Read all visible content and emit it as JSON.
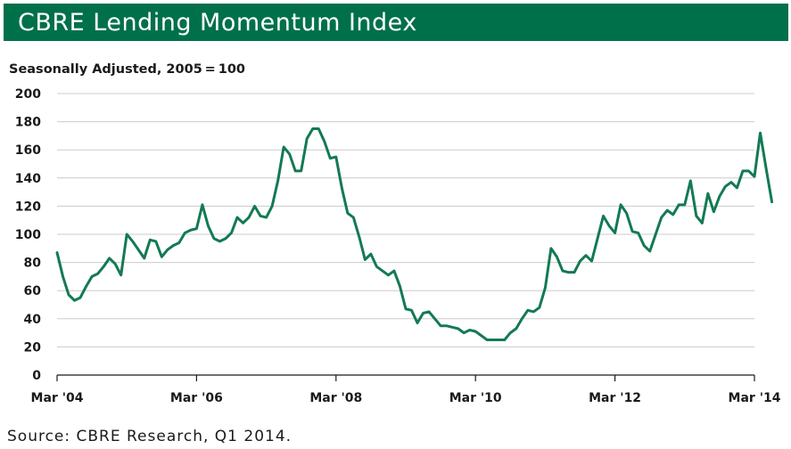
{
  "header": {
    "title": "CBRE Lending Momentum Index"
  },
  "source": "Source: CBRE Research, Q1 2014.",
  "colors": {
    "brand": "#00704a",
    "line": "#137a53",
    "grid": "#cccccc"
  },
  "chart_data": {
    "type": "line",
    "subtitle": "Seasonally Adjusted, 2005 = 100",
    "xlabel": "",
    "ylabel": "",
    "ylim": [
      0,
      200
    ],
    "yticks": [
      0,
      20,
      40,
      60,
      80,
      100,
      120,
      140,
      160,
      180,
      200
    ],
    "xlim": [
      0,
      120
    ],
    "xticks": [
      {
        "x": 0,
        "label": "Mar '04"
      },
      {
        "x": 24,
        "label": "Mar '06"
      },
      {
        "x": 48,
        "label": "Mar '08"
      },
      {
        "x": 72,
        "label": "Mar '10"
      },
      {
        "x": 96,
        "label": "Mar '12"
      },
      {
        "x": 120,
        "label": "Mar '14"
      }
    ],
    "grid": true,
    "legend": "none",
    "series": [
      {
        "values": [
          87,
          70,
          57,
          53,
          55,
          63,
          70,
          72,
          77,
          83,
          79,
          71,
          100,
          95,
          89,
          83,
          96,
          95,
          84,
          89,
          92,
          94,
          101,
          103,
          104,
          121,
          106,
          97,
          95,
          97,
          101,
          112,
          108,
          112,
          120,
          113,
          112,
          120,
          138,
          162,
          157,
          145,
          145,
          168,
          175,
          175,
          166,
          154,
          155,
          133,
          115,
          112,
          98,
          82,
          86,
          77,
          74,
          71,
          74,
          63,
          47,
          46,
          37,
          44,
          45,
          40,
          35,
          35,
          34,
          33,
          30,
          32,
          31,
          28,
          25,
          25,
          25,
          25,
          30,
          33,
          40,
          46,
          45,
          48,
          62,
          90,
          84,
          74,
          73,
          73,
          81,
          85,
          81,
          97,
          113,
          106,
          101,
          121,
          115,
          102,
          101,
          92,
          88,
          100,
          112,
          117,
          114,
          121,
          121,
          138,
          113,
          108,
          129,
          116,
          127,
          134,
          137,
          133,
          145,
          145,
          141,
          172,
          147,
          123
        ]
      }
    ]
  }
}
